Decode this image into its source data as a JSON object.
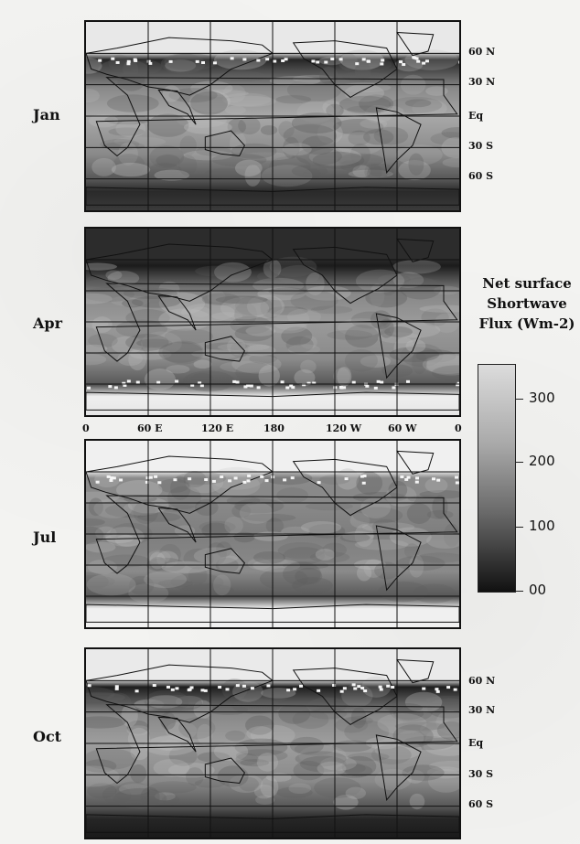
{
  "panels": [
    {
      "month": "Jan",
      "pattern": "jan"
    },
    {
      "month": "Apr",
      "pattern": "apr"
    },
    {
      "month": "Jul",
      "pattern": "jul"
    },
    {
      "month": "Oct",
      "pattern": "oct"
    }
  ],
  "lat_labels_top": [
    "60 N",
    "30 N",
    "Eq",
    "30 S",
    "60 S"
  ],
  "lat_labels_bottom": [
    "60 N",
    "30 N",
    "Eq",
    "30 S",
    "60 S"
  ],
  "lon_labels": [
    "0",
    "60 E",
    "120 E",
    "180",
    "120 W",
    "60 W",
    "0"
  ],
  "colorbar": {
    "title_lines": [
      "Net surface",
      "Shortwave",
      "Flux (Wm-2)"
    ],
    "tick_labels": [
      "300",
      "200",
      "100",
      "00"
    ]
  },
  "colors": {
    "high": "#d8d8d8",
    "mid": "#8c8c8c",
    "low": "#1a1a1a",
    "ice": "#f2f2f2"
  }
}
